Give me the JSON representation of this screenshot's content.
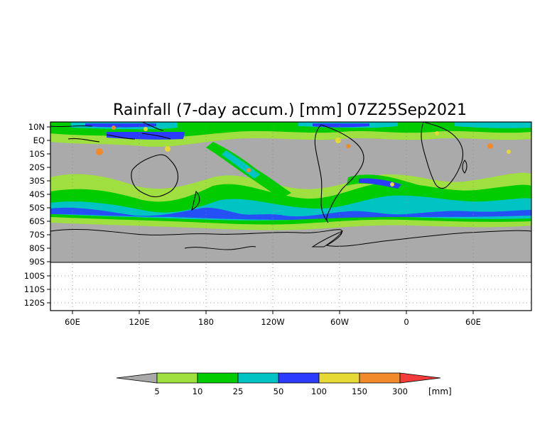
{
  "title": "Rainfall (7-day accum.) [mm] 07Z25Sep2021",
  "map": {
    "lat_labels": [
      "10N",
      "EQ",
      "10S",
      "20S",
      "30S",
      "40S",
      "50S",
      "60S",
      "70S",
      "80S",
      "90S",
      "100S",
      "110S",
      "120S"
    ],
    "lon_labels": [
      "60E",
      "120E",
      "180",
      "120W",
      "60W",
      "0",
      "60E"
    ],
    "grid": true
  },
  "legend": {
    "unit": "[mm]",
    "thresholds": [
      "5",
      "10",
      "25",
      "50",
      "100",
      "150",
      "300"
    ],
    "colors": [
      "#a9a9a9",
      "#9fdf3f",
      "#00cc00",
      "#00c4c4",
      "#2b3cff",
      "#e6d936",
      "#f08a2a",
      "#f23c3c"
    ]
  },
  "colors": {
    "ocean_dry": "#aaaaaa",
    "land_line": "#000000"
  }
}
